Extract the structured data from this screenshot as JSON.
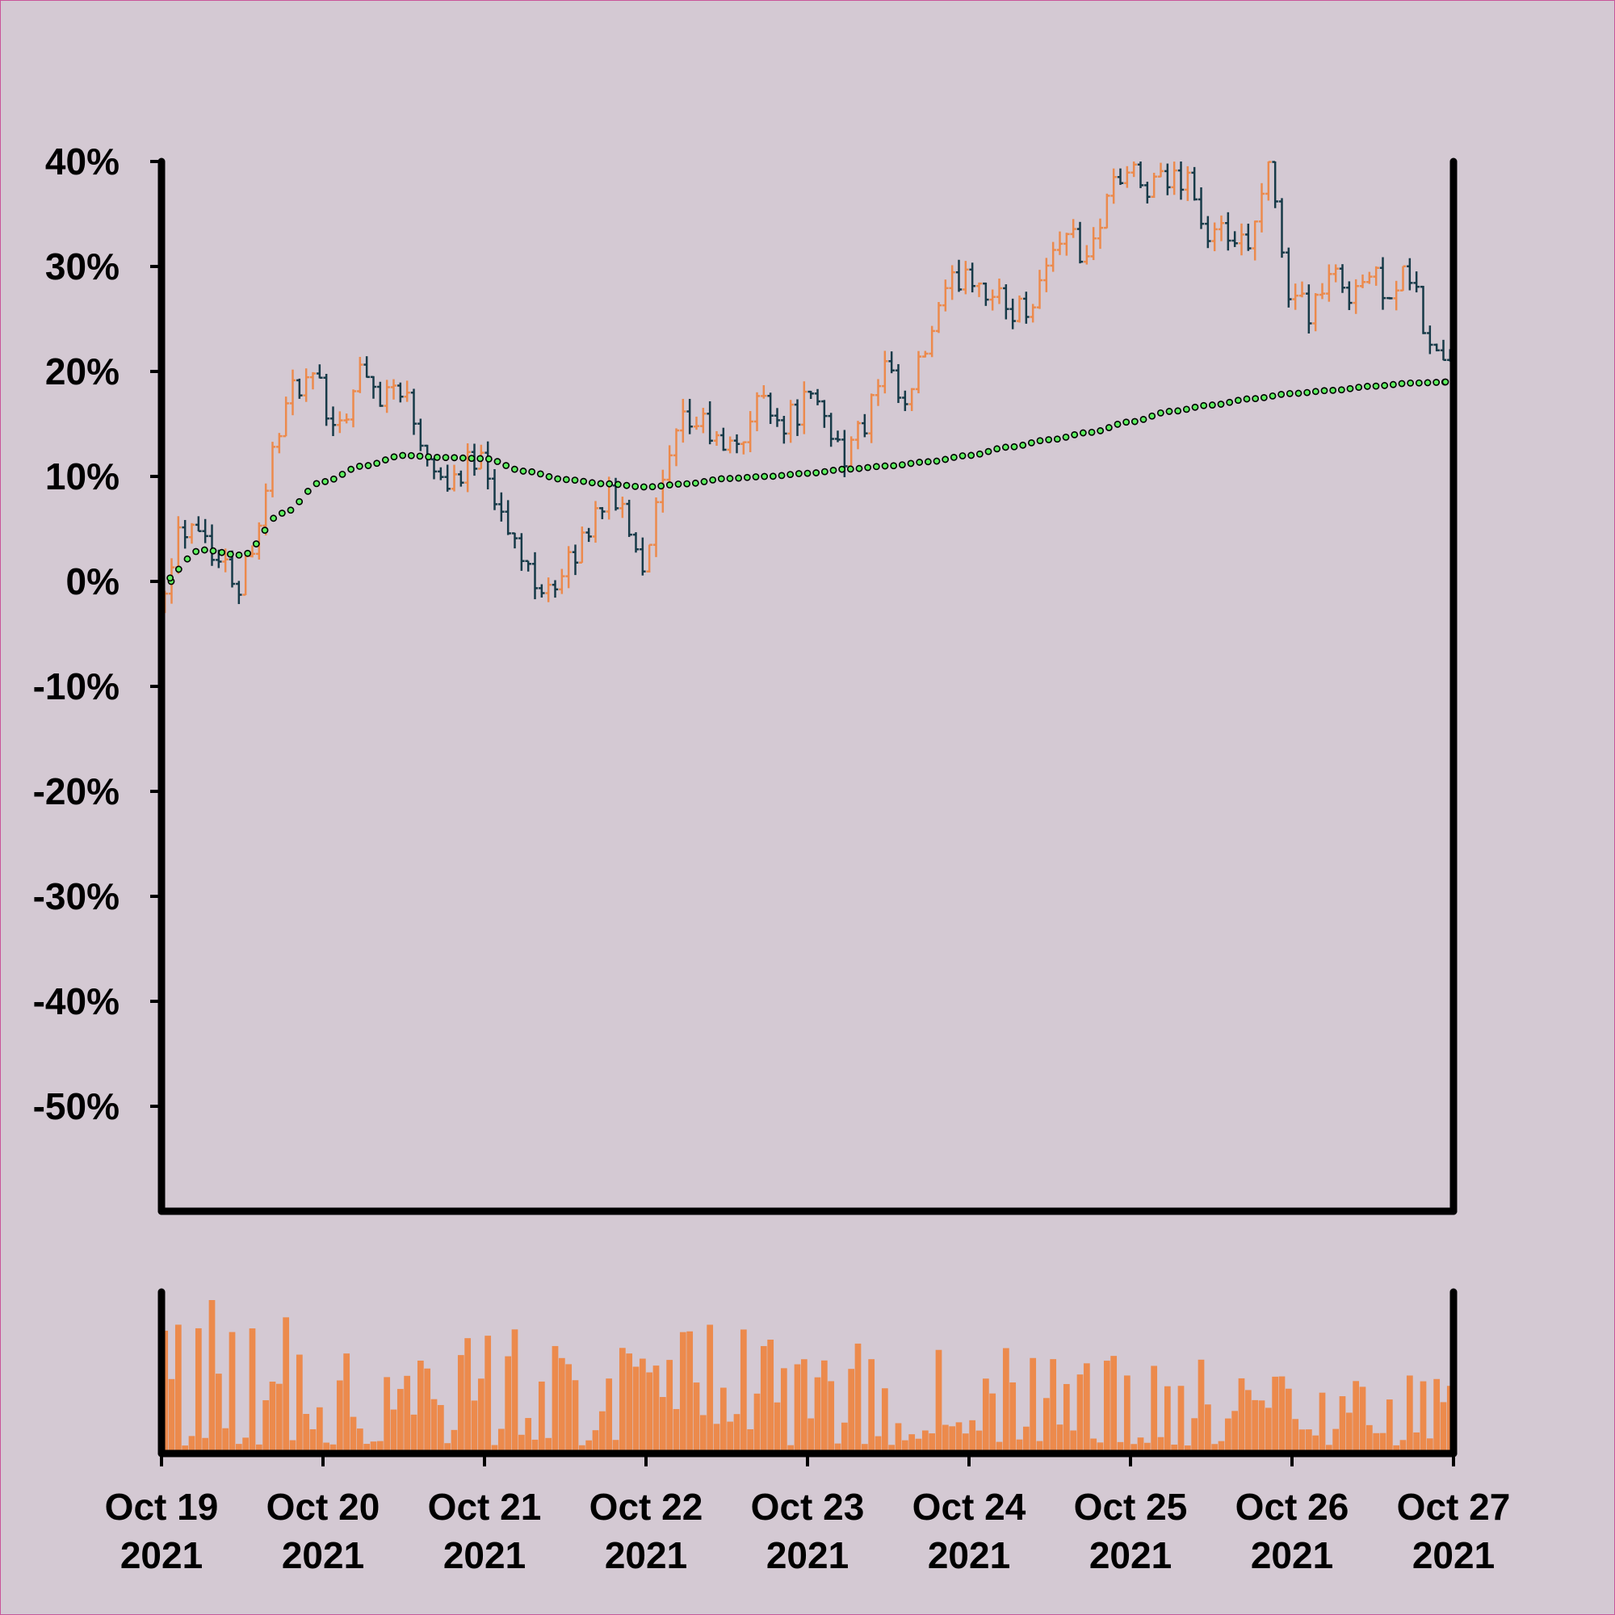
{
  "chart_data": {
    "type": "ohlc",
    "title": "",
    "xlabel": "",
    "ylabel": "",
    "ylim": [
      -0.6,
      0.4
    ],
    "y_tick_values": [
      0.4,
      0.3,
      0.2,
      0.1,
      0.0,
      -0.1,
      -0.2,
      -0.3,
      -0.4,
      -0.5
    ],
    "y_tick_labels": [
      "40%",
      "30%",
      "20%",
      "10%",
      "0%",
      "-10%",
      "-20%",
      "-30%",
      "-40%",
      "-50%"
    ],
    "x_range": [
      "2021-10-19",
      "2021-10-27"
    ],
    "x_ticks": [
      {
        "date": "2021-10-19",
        "line1": "Oct 19",
        "line2": "2021"
      },
      {
        "date": "2021-10-20",
        "line1": "Oct 20",
        "line2": "2021"
      },
      {
        "date": "2021-10-21",
        "line1": "Oct 21",
        "line2": "2021"
      },
      {
        "date": "2021-10-22",
        "line1": "Oct 22",
        "line2": "2021"
      },
      {
        "date": "2021-10-23",
        "line1": "Oct 23",
        "line2": "2021"
      },
      {
        "date": "2021-10-24",
        "line1": "Oct 24",
        "line2": "2021"
      },
      {
        "date": "2021-10-25",
        "line1": "Oct 25",
        "line2": "2021"
      },
      {
        "date": "2021-10-26",
        "line1": "Oct 26",
        "line2": "2021"
      },
      {
        "date": "2021-10-27",
        "line1": "Oct 27",
        "line2": "2021"
      }
    ],
    "bar_interval_hours": 1,
    "close_path": [
      [
        "2021-10-19T00:00",
        -0.02
      ],
      [
        "2021-10-19T03:00",
        0.05
      ],
      [
        "2021-10-19T06:00",
        0.06
      ],
      [
        "2021-10-19T09:00",
        0.02
      ],
      [
        "2021-10-19T12:00",
        0.0
      ],
      [
        "2021-10-19T15:00",
        0.06
      ],
      [
        "2021-10-19T18:00",
        0.15
      ],
      [
        "2021-10-19T21:00",
        0.19
      ],
      [
        "2021-10-20T00:00",
        0.18
      ],
      [
        "2021-10-20T03:00",
        0.15
      ],
      [
        "2021-10-20T06:00",
        0.2
      ],
      [
        "2021-10-20T09:00",
        0.18
      ],
      [
        "2021-10-20T12:00",
        0.19
      ],
      [
        "2021-10-20T15:00",
        0.14
      ],
      [
        "2021-10-20T18:00",
        0.1
      ],
      [
        "2021-10-20T21:00",
        0.1
      ],
      [
        "2021-10-21T00:00",
        0.13
      ],
      [
        "2021-10-21T03:00",
        0.06
      ],
      [
        "2021-10-21T06:00",
        0.02
      ],
      [
        "2021-10-21T09:00",
        0.0
      ],
      [
        "2021-10-21T12:00",
        0.0
      ],
      [
        "2021-10-21T15:00",
        0.04
      ],
      [
        "2021-10-21T18:00",
        0.08
      ],
      [
        "2021-10-21T21:00",
        0.07
      ],
      [
        "2021-10-22T00:00",
        0.02
      ],
      [
        "2021-10-22T03:00",
        0.09
      ],
      [
        "2021-10-22T06:00",
        0.15
      ],
      [
        "2021-10-22T09:00",
        0.15
      ],
      [
        "2021-10-22T12:00",
        0.12
      ],
      [
        "2021-10-22T15:00",
        0.14
      ],
      [
        "2021-10-22T18:00",
        0.18
      ],
      [
        "2021-10-22T21:00",
        0.15
      ],
      [
        "2021-10-23T00:00",
        0.17
      ],
      [
        "2021-10-23T03:00",
        0.16
      ],
      [
        "2021-10-23T06:00",
        0.12
      ],
      [
        "2021-10-23T09:00",
        0.15
      ],
      [
        "2021-10-23T12:00",
        0.2
      ],
      [
        "2021-10-23T15:00",
        0.16
      ],
      [
        "2021-10-23T18:00",
        0.22
      ],
      [
        "2021-10-23T21:00",
        0.27
      ],
      [
        "2021-10-24T00:00",
        0.3
      ],
      [
        "2021-10-24T03:00",
        0.28
      ],
      [
        "2021-10-24T06:00",
        0.26
      ],
      [
        "2021-10-24T09:00",
        0.26
      ],
      [
        "2021-10-24T12:00",
        0.3
      ],
      [
        "2021-10-24T15:00",
        0.34
      ],
      [
        "2021-10-24T18:00",
        0.3
      ],
      [
        "2021-10-24T21:00",
        0.37
      ],
      [
        "2021-10-25T00:00",
        0.39
      ],
      [
        "2021-10-25T03:00",
        0.37
      ],
      [
        "2021-10-25T06:00",
        0.38
      ],
      [
        "2021-10-25T09:00",
        0.39
      ],
      [
        "2021-10-25T12:00",
        0.32
      ],
      [
        "2021-10-25T15:00",
        0.33
      ],
      [
        "2021-10-25T18:00",
        0.31
      ],
      [
        "2021-10-25T21:00",
        0.39
      ],
      [
        "2021-10-26T00:00",
        0.28
      ],
      [
        "2021-10-26T03:00",
        0.26
      ],
      [
        "2021-10-26T06:00",
        0.29
      ],
      [
        "2021-10-26T09:00",
        0.28
      ],
      [
        "2021-10-26T12:00",
        0.29
      ],
      [
        "2021-10-26T15:00",
        0.28
      ],
      [
        "2021-10-26T18:00",
        0.29
      ],
      [
        "2021-10-26T21:00",
        0.22
      ],
      [
        "2021-10-27T00:00",
        0.21
      ]
    ],
    "moving_average": [
      [
        "2021-10-19T00:00",
        0.0
      ],
      [
        "2021-10-19T06:00",
        0.03
      ],
      [
        "2021-10-19T12:00",
        0.025
      ],
      [
        "2021-10-19T18:00",
        0.065
      ],
      [
        "2021-10-20T00:00",
        0.095
      ],
      [
        "2021-10-20T06:00",
        0.11
      ],
      [
        "2021-10-20T12:00",
        0.12
      ],
      [
        "2021-10-20T18:00",
        0.118
      ],
      [
        "2021-10-21T00:00",
        0.117
      ],
      [
        "2021-10-21T06:00",
        0.105
      ],
      [
        "2021-10-21T12:00",
        0.097
      ],
      [
        "2021-10-21T18:00",
        0.093
      ],
      [
        "2021-10-22T00:00",
        0.09
      ],
      [
        "2021-10-22T06:00",
        0.093
      ],
      [
        "2021-10-22T12:00",
        0.098
      ],
      [
        "2021-10-22T18:00",
        0.1
      ],
      [
        "2021-10-23T00:00",
        0.103
      ],
      [
        "2021-10-23T06:00",
        0.107
      ],
      [
        "2021-10-23T12:00",
        0.11
      ],
      [
        "2021-10-23T18:00",
        0.114
      ],
      [
        "2021-10-24T00:00",
        0.12
      ],
      [
        "2021-10-24T06:00",
        0.128
      ],
      [
        "2021-10-24T12:00",
        0.135
      ],
      [
        "2021-10-24T18:00",
        0.142
      ],
      [
        "2021-10-25T00:00",
        0.152
      ],
      [
        "2021-10-25T06:00",
        0.162
      ],
      [
        "2021-10-25T12:00",
        0.168
      ],
      [
        "2021-10-25T18:00",
        0.174
      ],
      [
        "2021-10-26T00:00",
        0.179
      ],
      [
        "2021-10-26T06:00",
        0.182
      ],
      [
        "2021-10-26T12:00",
        0.186
      ],
      [
        "2021-10-26T18:00",
        0.189
      ],
      [
        "2021-10-27T00:00",
        0.19
      ]
    ],
    "colors": {
      "up": "#ec8a4c",
      "down": "#163a48",
      "volume": "#ec8a4c",
      "moving_average_fill": "#5ef060",
      "axis": "#000000",
      "background": "#d4c9d3"
    },
    "volume_panel": true,
    "grid": false,
    "legend": "none"
  }
}
